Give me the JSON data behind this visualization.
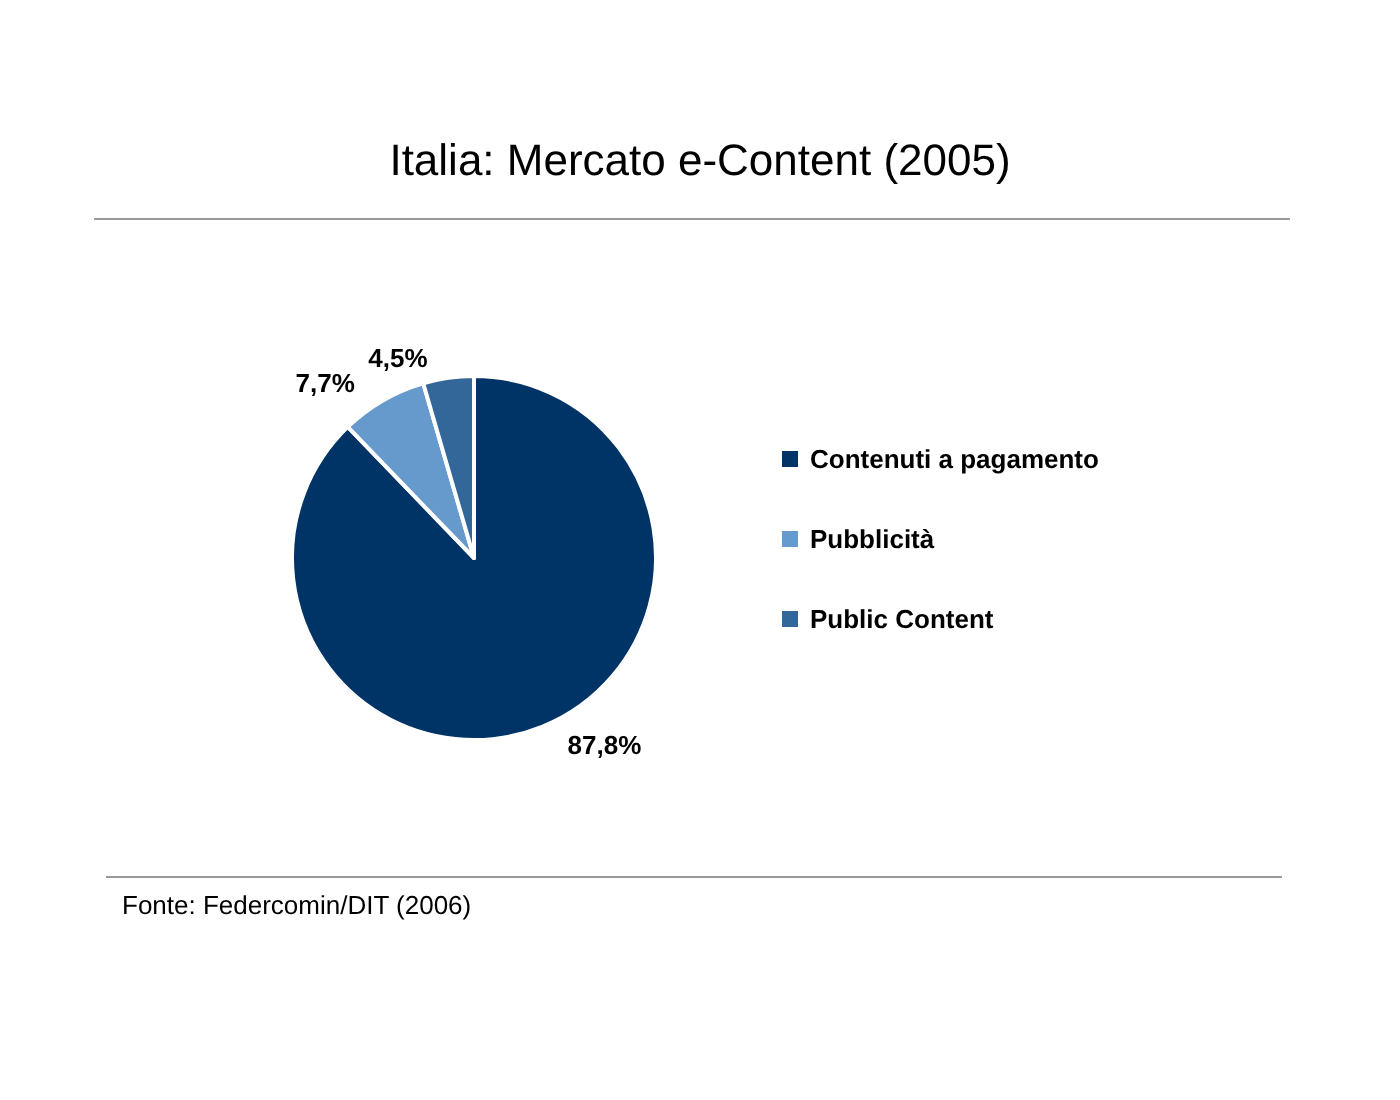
{
  "chart_data": {
    "type": "pie",
    "title": "Italia: Mercato e-Content (2005)",
    "categories": [
      "Contenuti a pagamento",
      "Pubblicità",
      "Public Content"
    ],
    "values": [
      87.8,
      7.7,
      4.5
    ],
    "colors": [
      "#003366",
      "#6699cc",
      "#336699"
    ],
    "value_labels": [
      "87,8%",
      "7,7%",
      "4,5%"
    ],
    "legend": "right",
    "annotations": [
      "Fonte: Federcomin/DIT (2006)"
    ]
  }
}
